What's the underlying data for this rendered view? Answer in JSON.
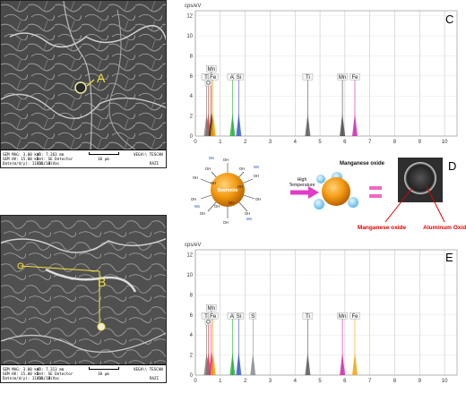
{
  "panels": {
    "a_label": "A",
    "b_label": "B",
    "c_label": "C",
    "d_label": "D",
    "e_label": "E"
  },
  "sem_top": {
    "marker": "A",
    "mag": "SEM MAG: 3.00 kx",
    "hv": "SEM HV: 15.00 kV",
    "date": "Date(m/d/y): 11/25/13",
    "wd": "WD: 7.263 mm",
    "det": "Det: SE Detector",
    "vac": "Vac: HiVac",
    "scale": "10 μm",
    "brand": "VEGA\\\\ TESCAN",
    "lab": "RAZI"
  },
  "sem_bottom": {
    "marker": "B",
    "mag": "SEM MAG: 3.00 kx",
    "hv": "SEM HV: 15.00 kV",
    "date": "Date(m/d/y): 11/25/13",
    "wd": "WD: 7.313 mm",
    "det": "Det: SE Detector",
    "vac": "Vac: HiVac",
    "scale": "10 μm",
    "brand": "VEGA\\\\ TESCAN",
    "lab": "RAZI"
  },
  "diagram": {
    "left_core": "Boehmite",
    "arrow_top": "High",
    "arrow_bottom": "Temperature",
    "right_core": "Al2O3",
    "oxide_title": "Manganese oxide",
    "label_mn": "Manganese oxide",
    "label_al": "Aluminum Oxide",
    "groups": [
      "OH",
      "OH",
      "OH",
      "OH",
      "OH",
      "OH",
      "OH",
      "OH",
      "OH",
      "OH",
      "OH",
      "OH",
      "OH",
      "OH"
    ],
    "mn": "Mn"
  },
  "chart_data": [
    {
      "type": "line",
      "title": "",
      "ylabel": "cps/eV",
      "xlabel": "",
      "xlim": [
        0,
        10.5
      ],
      "ylim": [
        0,
        12.5
      ],
      "xticks": [
        "0",
        "1",
        "2",
        "3",
        "4",
        "5",
        "6",
        "7",
        "8",
        "9",
        "10"
      ],
      "yticks": [
        "0",
        "2",
        "4",
        "6",
        "8",
        "10",
        "12"
      ],
      "grid": true,
      "peaks": [
        {
          "el": "O",
          "x": 0.52,
          "y": 5.6,
          "color": "#e8312b"
        },
        {
          "el": "Mn",
          "x": 0.64,
          "y": 6.4,
          "color": "#222222"
        },
        {
          "el": "Fe",
          "x": 0.71,
          "y": 5.8,
          "color": "#f5a000"
        },
        {
          "el": "Ti",
          "x": 0.45,
          "y": 5.6,
          "color": "#777777"
        },
        {
          "el": "Al",
          "x": 1.49,
          "y": 5.6,
          "color": "#22aa33"
        },
        {
          "el": "Si",
          "x": 1.74,
          "y": 5.8,
          "color": "#3355cc"
        },
        {
          "el": "Ti",
          "x": 4.51,
          "y": 5.6,
          "color": "#555555"
        },
        {
          "el": "Mn",
          "x": 5.9,
          "y": 5.6,
          "color": "#444444"
        },
        {
          "el": "Fe",
          "x": 6.4,
          "y": 5.6,
          "color": "#cc22aa"
        }
      ],
      "labels": [
        {
          "text": "Mn",
          "x": 0.64,
          "y": 6.4
        },
        {
          "text": "Ti",
          "x": 0.45,
          "y": 5.6
        },
        {
          "text": "Fe",
          "x": 0.71,
          "y": 5.6
        },
        {
          "text": "O",
          "x": 0.52,
          "y": 5.0
        },
        {
          "text": "Al",
          "x": 1.49,
          "y": 5.6
        },
        {
          "text": "Si",
          "x": 1.74,
          "y": 5.6
        },
        {
          "text": "Ti",
          "x": 4.51,
          "y": 5.6
        },
        {
          "text": "Mn",
          "x": 5.9,
          "y": 5.6
        },
        {
          "text": "Fe",
          "x": 6.4,
          "y": 5.6
        }
      ]
    },
    {
      "type": "line",
      "title": "",
      "ylabel": "cps/eV",
      "xlabel": "",
      "xlim": [
        0,
        10.5
      ],
      "ylim": [
        0,
        12.5
      ],
      "xticks": [
        "0",
        "1",
        "2",
        "3",
        "4",
        "5",
        "6",
        "7",
        "8",
        "9",
        "10"
      ],
      "yticks": [
        "0",
        "2",
        "4",
        "6",
        "8",
        "10",
        "12"
      ],
      "grid": true,
      "peaks": [
        {
          "el": "O",
          "x": 0.52,
          "y": 5.6,
          "color": "#e8312b"
        },
        {
          "el": "Mn",
          "x": 0.64,
          "y": 6.4,
          "color": "#cc22aa"
        },
        {
          "el": "Fe",
          "x": 0.71,
          "y": 5.8,
          "color": "#f5a000"
        },
        {
          "el": "Ti",
          "x": 0.45,
          "y": 5.6,
          "color": "#777777"
        },
        {
          "el": "Al",
          "x": 1.49,
          "y": 5.6,
          "color": "#22aa33"
        },
        {
          "el": "Si",
          "x": 1.74,
          "y": 5.8,
          "color": "#3355cc"
        },
        {
          "el": "S",
          "x": 2.31,
          "y": 5.6,
          "color": "#888888"
        },
        {
          "el": "Ti",
          "x": 4.51,
          "y": 5.6,
          "color": "#555555"
        },
        {
          "el": "Mn",
          "x": 5.9,
          "y": 5.6,
          "color": "#cc22aa"
        },
        {
          "el": "Fe",
          "x": 6.4,
          "y": 5.6,
          "color": "#f5a000"
        }
      ],
      "labels": [
        {
          "text": "Mn",
          "x": 0.64,
          "y": 6.4
        },
        {
          "text": "Ti",
          "x": 0.45,
          "y": 5.6
        },
        {
          "text": "Fe",
          "x": 0.71,
          "y": 5.6
        },
        {
          "text": "O",
          "x": 0.52,
          "y": 5.0
        },
        {
          "text": "Al",
          "x": 1.49,
          "y": 5.6
        },
        {
          "text": "Si",
          "x": 1.74,
          "y": 5.6
        },
        {
          "text": "S",
          "x": 2.31,
          "y": 5.6
        },
        {
          "text": "Ti",
          "x": 4.51,
          "y": 5.6
        },
        {
          "text": "Mn",
          "x": 5.9,
          "y": 5.6
        },
        {
          "text": "Fe",
          "x": 6.4,
          "y": 5.6
        }
      ]
    }
  ]
}
